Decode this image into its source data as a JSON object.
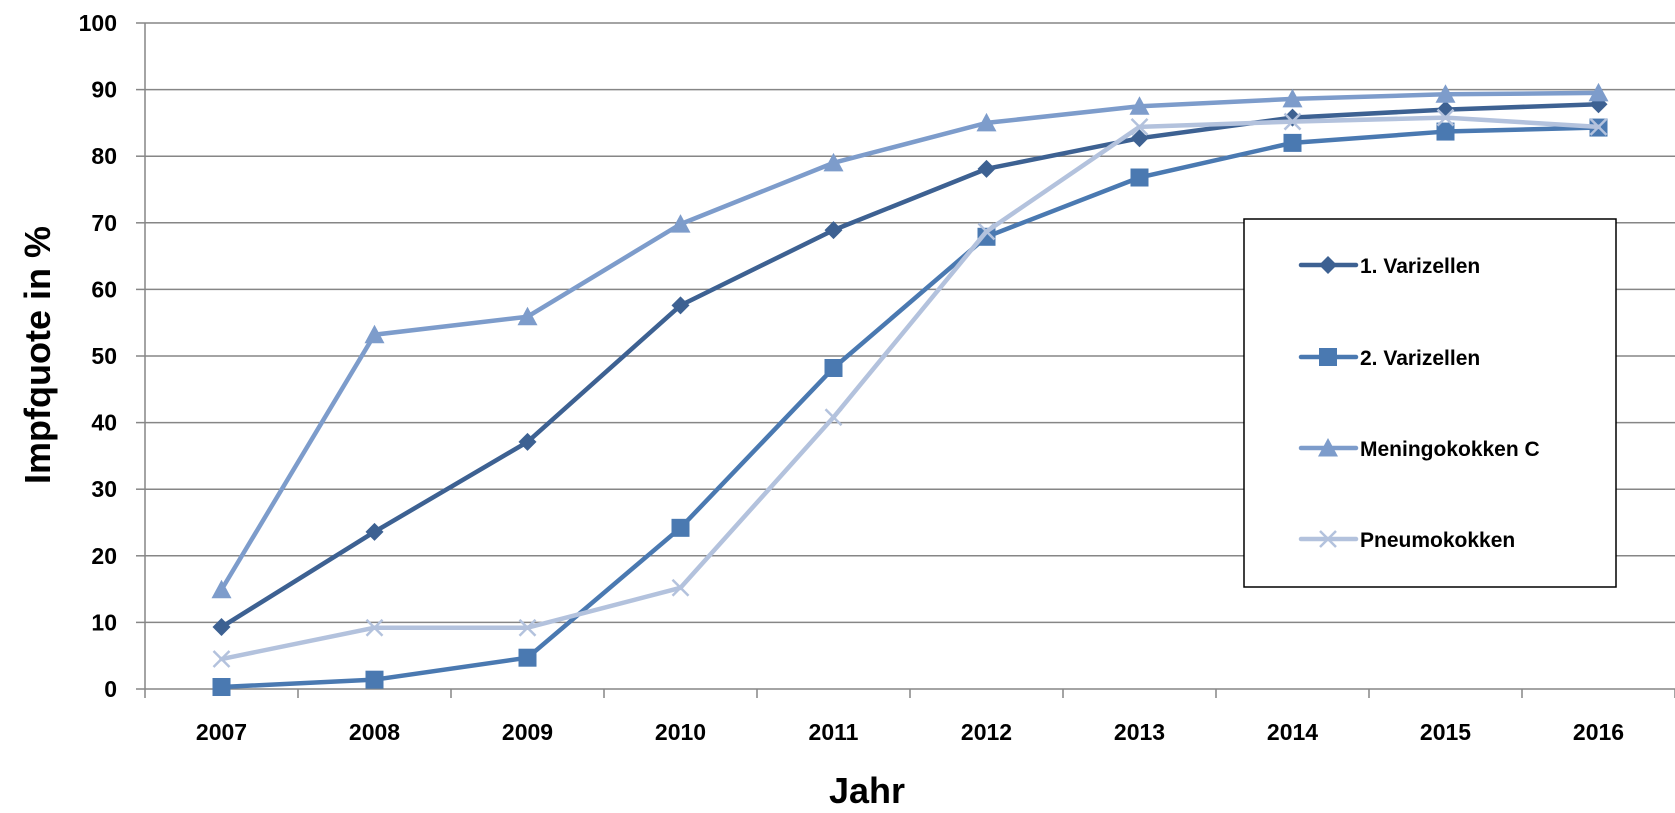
{
  "chart_data": {
    "type": "line",
    "title": "",
    "xlabel": "Jahr",
    "ylabel": "Impfquote in %",
    "categories": [
      "2007",
      "2008",
      "2009",
      "2010",
      "2011",
      "2012",
      "2013",
      "2014",
      "2015",
      "2016"
    ],
    "ylim": [
      0,
      100
    ],
    "yticks": [
      0,
      10,
      20,
      30,
      40,
      50,
      60,
      70,
      80,
      90,
      100
    ],
    "grid": true,
    "legend_position": "right",
    "series": [
      {
        "name": "1. Varizellen",
        "marker": "diamond",
        "color": "#3D6192",
        "values": [
          9.3,
          23.6,
          37.1,
          57.6,
          68.9,
          78.1,
          82.7,
          85.8,
          87.0,
          87.8
        ]
      },
      {
        "name": "2. Varizellen",
        "marker": "square",
        "color": "#4A79B1",
        "values": [
          0.3,
          1.4,
          4.7,
          24.2,
          48.2,
          67.9,
          76.8,
          82.0,
          83.7,
          84.3
        ]
      },
      {
        "name": "Meningokokken C",
        "marker": "triangle",
        "color": "#7D9CCB",
        "values": [
          14.9,
          53.2,
          55.9,
          69.8,
          79.0,
          85.0,
          87.5,
          88.6,
          89.3,
          89.5
        ]
      },
      {
        "name": "Pneumokokken",
        "marker": "x",
        "color": "#B3C2DD",
        "values": [
          4.5,
          9.2,
          9.2,
          15.2,
          40.8,
          68.7,
          84.4,
          85.2,
          85.8,
          84.4
        ]
      }
    ]
  }
}
